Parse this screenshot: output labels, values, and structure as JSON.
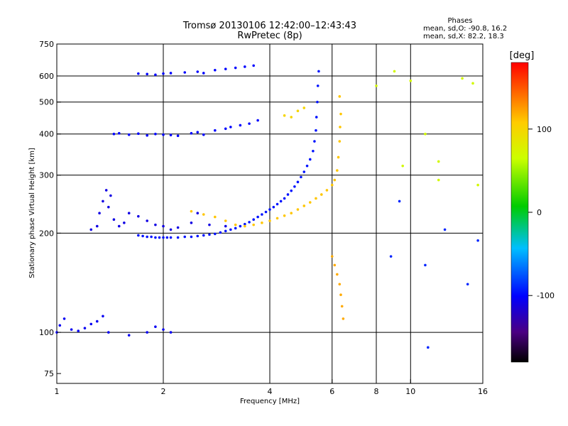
{
  "chart_data": {
    "type": "scatter",
    "title": "Tromsø 20130106 12:42:00–12:43:43",
    "subtitle": "RwPretec (8p)",
    "stats": {
      "heading": "Phases",
      "line1": "mean, sd,O: -90.8, 16.2",
      "line2": "mean, sd,X:  82.2, 18.3"
    },
    "xlabel": "Frequency [MHz]",
    "ylabel": "Stationary phase Virtual Height [km]",
    "x_scale": "log",
    "y_scale": "log",
    "xlim": [
      1,
      16
    ],
    "ylim": [
      70,
      750
    ],
    "x_ticks": [
      1,
      2,
      4,
      6,
      8,
      10,
      16
    ],
    "x_tick_labels": [
      "1",
      "2",
      "4",
      "6",
      "8",
      "10",
      "16"
    ],
    "x_grid": [
      2,
      4,
      6,
      8,
      10
    ],
    "y_ticks": [
      75,
      100,
      200,
      300,
      400,
      500,
      600,
      750
    ],
    "y_tick_labels": [
      "75",
      "100",
      "200",
      "300",
      "400",
      "500",
      "600",
      "750"
    ],
    "y_grid": [
      100,
      200,
      300,
      400,
      500,
      600
    ],
    "grid": true,
    "colorbar": {
      "label": "[deg]",
      "range": [
        -180,
        180
      ],
      "ticks": [
        100,
        0,
        -100
      ],
      "tick_labels": [
        "100",
        "0",
        "-100"
      ],
      "colormap": "rainbow"
    },
    "series": [
      {
        "color_value": -95,
        "points": [
          [
            1.7,
            197
          ],
          [
            1.75,
            196
          ],
          [
            1.8,
            195
          ],
          [
            1.85,
            195
          ],
          [
            1.9,
            194
          ],
          [
            1.95,
            194
          ],
          [
            2.0,
            194
          ],
          [
            2.05,
            194
          ],
          [
            2.1,
            194
          ],
          [
            2.2,
            194
          ],
          [
            2.3,
            195
          ],
          [
            2.4,
            195
          ],
          [
            2.5,
            196
          ],
          [
            2.6,
            197
          ],
          [
            2.7,
            198
          ],
          [
            2.8,
            199
          ],
          [
            2.9,
            201
          ],
          [
            3.0,
            203
          ],
          [
            3.1,
            205
          ],
          [
            3.2,
            207
          ],
          [
            3.3,
            210
          ],
          [
            3.4,
            213
          ],
          [
            3.5,
            216
          ],
          [
            3.6,
            220
          ],
          [
            3.7,
            224
          ],
          [
            3.8,
            228
          ],
          [
            3.9,
            232
          ],
          [
            4.0,
            236
          ],
          [
            4.1,
            240
          ],
          [
            4.2,
            245
          ],
          [
            4.3,
            250
          ],
          [
            4.4,
            255
          ],
          [
            4.5,
            262
          ],
          [
            4.6,
            269
          ],
          [
            4.7,
            277
          ],
          [
            4.8,
            286
          ],
          [
            4.9,
            296
          ],
          [
            5.0,
            307
          ],
          [
            5.1,
            320
          ],
          [
            5.2,
            335
          ],
          [
            5.3,
            355
          ],
          [
            5.35,
            380
          ],
          [
            5.4,
            410
          ],
          [
            5.42,
            450
          ],
          [
            5.45,
            500
          ],
          [
            5.47,
            560
          ],
          [
            5.5,
            620
          ]
        ]
      },
      {
        "color_value": -110,
        "points": [
          [
            1.25,
            205
          ],
          [
            1.3,
            210
          ],
          [
            1.32,
            230
          ],
          [
            1.35,
            250
          ],
          [
            1.38,
            270
          ],
          [
            1.4,
            240
          ],
          [
            1.42,
            260
          ],
          [
            1.45,
            220
          ],
          [
            1.5,
            210
          ],
          [
            1.55,
            215
          ],
          [
            1.6,
            230
          ],
          [
            1.7,
            225
          ],
          [
            1.8,
            218
          ],
          [
            1.9,
            212
          ],
          [
            2.0,
            210
          ],
          [
            2.1,
            205
          ],
          [
            2.2,
            208
          ],
          [
            2.4,
            215
          ],
          [
            2.5,
            230
          ],
          [
            2.7,
            212
          ],
          [
            3.0,
            210
          ]
        ]
      },
      {
        "color_value": -100,
        "points": [
          [
            1.45,
            400
          ],
          [
            1.5,
            402
          ],
          [
            1.6,
            398
          ],
          [
            1.7,
            401
          ],
          [
            1.8,
            396
          ],
          [
            1.9,
            400
          ],
          [
            2.0,
            398
          ],
          [
            2.1,
            397
          ],
          [
            2.2,
            395
          ],
          [
            2.4,
            402
          ],
          [
            2.5,
            405
          ],
          [
            2.6,
            398
          ],
          [
            2.8,
            410
          ],
          [
            3.0,
            415
          ],
          [
            3.1,
            420
          ],
          [
            3.3,
            425
          ],
          [
            3.5,
            430
          ],
          [
            3.7,
            440
          ]
        ]
      },
      {
        "color_value": -100,
        "points": [
          [
            1.7,
            610
          ],
          [
            1.8,
            608
          ],
          [
            1.9,
            605
          ],
          [
            2.0,
            610
          ],
          [
            2.1,
            612
          ],
          [
            2.3,
            615
          ],
          [
            2.5,
            618
          ],
          [
            2.6,
            612
          ],
          [
            2.8,
            625
          ],
          [
            3.0,
            630
          ],
          [
            3.2,
            635
          ],
          [
            3.4,
            640
          ],
          [
            3.6,
            645
          ]
        ]
      },
      {
        "color_value": -105,
        "points": [
          [
            1.0,
            100
          ],
          [
            1.02,
            105
          ],
          [
            1.05,
            110
          ],
          [
            1.1,
            102
          ],
          [
            1.15,
            101
          ],
          [
            1.2,
            103
          ],
          [
            1.25,
            106
          ],
          [
            1.3,
            108
          ],
          [
            1.35,
            112
          ],
          [
            1.4,
            100
          ],
          [
            1.6,
            98
          ],
          [
            1.8,
            100
          ],
          [
            1.9,
            104
          ],
          [
            2.0,
            102
          ],
          [
            2.1,
            100
          ]
        ]
      },
      {
        "color_value": 110,
        "points": [
          [
            2.4,
            233
          ],
          [
            2.6,
            228
          ],
          [
            2.8,
            224
          ],
          [
            3.0,
            218
          ],
          [
            3.2,
            212
          ],
          [
            3.4,
            210
          ],
          [
            3.6,
            212
          ],
          [
            3.8,
            215
          ],
          [
            4.0,
            218
          ],
          [
            4.2,
            222
          ],
          [
            4.4,
            226
          ],
          [
            4.6,
            230
          ],
          [
            4.8,
            236
          ],
          [
            5.0,
            242
          ],
          [
            5.2,
            248
          ],
          [
            5.4,
            255
          ],
          [
            5.6,
            262
          ],
          [
            5.8,
            270
          ],
          [
            6.0,
            280
          ],
          [
            6.1,
            290
          ],
          [
            6.2,
            310
          ],
          [
            6.25,
            340
          ],
          [
            6.3,
            380
          ],
          [
            6.32,
            420
          ],
          [
            6.35,
            460
          ],
          [
            6.3,
            520
          ]
        ]
      },
      {
        "color_value": 100,
        "points": [
          [
            4.4,
            455
          ],
          [
            4.6,
            450
          ],
          [
            4.8,
            470
          ],
          [
            5.0,
            480
          ]
        ]
      },
      {
        "color_value": 120,
        "points": [
          [
            6.0,
            170
          ],
          [
            6.1,
            160
          ],
          [
            6.2,
            150
          ],
          [
            6.3,
            140
          ],
          [
            6.35,
            130
          ],
          [
            6.4,
            120
          ],
          [
            6.45,
            110
          ]
        ]
      },
      {
        "color_value": 70,
        "points": [
          [
            8.0,
            560
          ],
          [
            9.0,
            620
          ],
          [
            10.0,
            580
          ],
          [
            11.0,
            400
          ],
          [
            12.0,
            330
          ],
          [
            14.0,
            590
          ],
          [
            15.0,
            570
          ],
          [
            9.5,
            320
          ],
          [
            12.0,
            290
          ],
          [
            15.5,
            280
          ]
        ]
      },
      {
        "color_value": -90,
        "points": [
          [
            8.8,
            170
          ],
          [
            9.3,
            250
          ],
          [
            11.0,
            160
          ],
          [
            11.2,
            90
          ],
          [
            12.5,
            205
          ],
          [
            14.5,
            140
          ],
          [
            15.5,
            190
          ]
        ]
      }
    ]
  }
}
